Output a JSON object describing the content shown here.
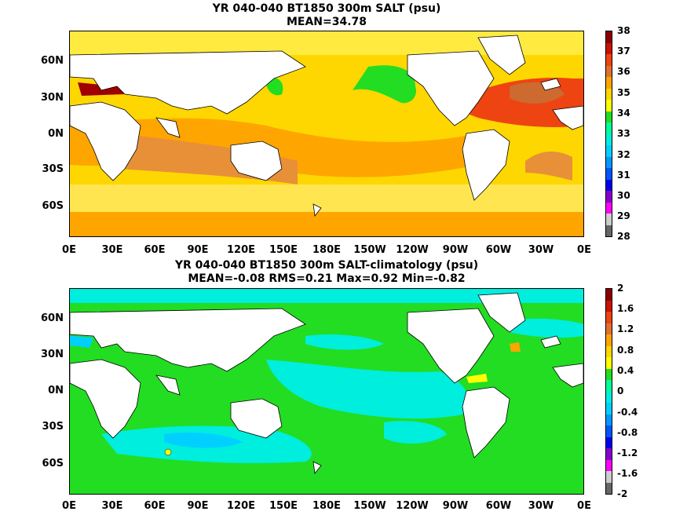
{
  "panel1": {
    "title_line1": "YR 040-040 BT1850 300m SALT (psu)",
    "title_line2": "MEAN=34.78",
    "lat_labels": [
      "60N",
      "30N",
      "0N",
      "30S",
      "60S"
    ],
    "lon_labels": [
      "0E",
      "30E",
      "60E",
      "90E",
      "120E",
      "150E",
      "180E",
      "150W",
      "120W",
      "90W",
      "60W",
      "30W",
      "0E"
    ],
    "colorbar_labels": [
      "38",
      "37",
      "36",
      "35",
      "34",
      "33",
      "32",
      "31",
      "30",
      "29",
      "28"
    ],
    "colorbar_colors": [
      "#8b0000",
      "#cc1100",
      "#ee4411",
      "#e07030",
      "#ffa500",
      "#ffd700",
      "#ffff00",
      "#22dd22",
      "#00ff99",
      "#00eedd",
      "#00d0ff",
      "#0099ff",
      "#0055ff",
      "#0000ee",
      "#8800cc",
      "#ff00ff",
      "#cccccc",
      "#666666"
    ]
  },
  "panel2": {
    "title_line1": "YR 040-040 BT1850 300m SALT-climatology (psu)",
    "title_line2": "MEAN=-0.08   RMS=0.21   Max=0.92   Min=-0.82",
    "lat_labels": [
      "60N",
      "30N",
      "0N",
      "30S",
      "60S"
    ],
    "lon_labels": [
      "0E",
      "30E",
      "60E",
      "90E",
      "120E",
      "150E",
      "180E",
      "150W",
      "120W",
      "90W",
      "60W",
      "30W",
      "0E"
    ],
    "colorbar_labels": [
      "2",
      "1.6",
      "1.2",
      "0.8",
      "0.4",
      "0",
      "-0.4",
      "-0.8",
      "-1.2",
      "-1.6",
      "-2"
    ],
    "colorbar_colors": [
      "#8b0000",
      "#cc1100",
      "#ee4411",
      "#e07030",
      "#ffa500",
      "#ffd700",
      "#ffff00",
      "#22dd22",
      "#00ff99",
      "#00eedd",
      "#00d0ff",
      "#0099ff",
      "#0055ff",
      "#0000ee",
      "#8800cc",
      "#ff00ff",
      "#cccccc",
      "#666666"
    ]
  }
}
